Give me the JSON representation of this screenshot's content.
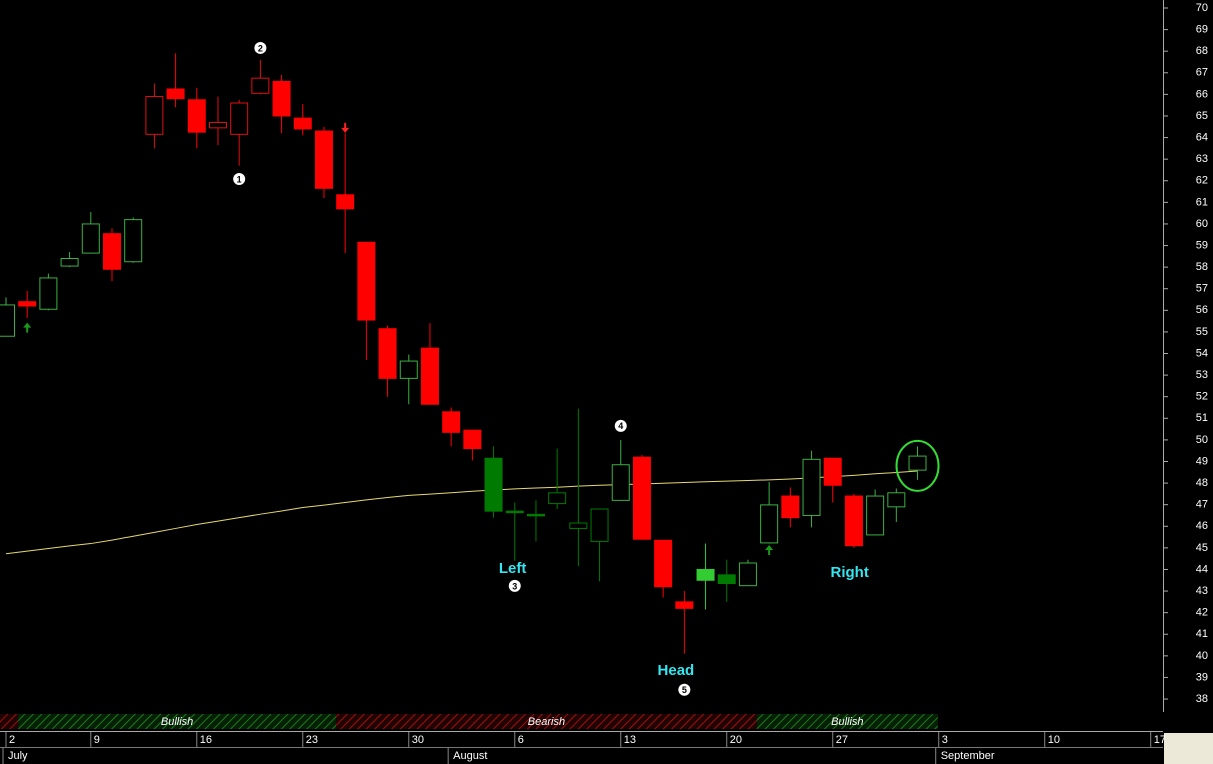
{
  "chart_data": {
    "type": "candlestick",
    "xlim": [
      -0.283,
      54.58
    ],
    "ylim": [
      37.4,
      70.37
    ],
    "yticks": [
      38,
      39,
      40,
      41,
      42,
      43,
      44,
      45,
      46,
      47,
      48,
      49,
      50,
      51,
      52,
      53,
      54,
      55,
      56,
      57,
      58,
      59,
      60,
      61,
      62,
      63,
      64,
      65,
      66,
      67,
      68,
      69,
      70
    ],
    "open": [
      54.8,
      56.4,
      56.05,
      58.05,
      58.65,
      59.55,
      58.25,
      64.15,
      66.25,
      65.75,
      64.45,
      64.15,
      66.05,
      66.6,
      64.9,
      64.3,
      61.35,
      59.15,
      55.15,
      52.85,
      54.25,
      51.3,
      50.45,
      49.15,
      46.7,
      46.55,
      47.05,
      45.9,
      45.3,
      47.2,
      49.2,
      45.35,
      42.5,
      44.0,
      43.75,
      43.25,
      45.23,
      47.4,
      46.5,
      49.15,
      47.4,
      45.6,
      46.9,
      48.6
    ],
    "high": [
      56.6,
      56.9,
      57.7,
      58.7,
      60.55,
      59.8,
      60.3,
      66.5,
      67.9,
      66.3,
      65.9,
      65.75,
      67.6,
      66.9,
      65.55,
      64.5,
      64.2,
      59.15,
      55.3,
      53.95,
      55.4,
      51.5,
      50.45,
      49.7,
      47.1,
      47.2,
      49.6,
      51.45,
      46.8,
      50.0,
      49.3,
      45.35,
      43.0,
      45.2,
      44.45,
      44.45,
      48.05,
      47.8,
      49.5,
      49.15,
      47.5,
      47.7,
      47.75,
      49.7
    ],
    "low": [
      54.8,
      55.65,
      56.0,
      58.0,
      58.65,
      57.35,
      58.2,
      63.5,
      65.4,
      63.5,
      63.65,
      62.7,
      66.0,
      64.2,
      64.1,
      61.2,
      58.65,
      53.7,
      52.0,
      51.65,
      51.65,
      49.7,
      49.05,
      46.4,
      44.4,
      45.3,
      46.8,
      44.15,
      43.45,
      47.2,
      45.4,
      42.7,
      40.1,
      42.15,
      42.5,
      43.25,
      45.2,
      45.95,
      45.95,
      47.1,
      45.0,
      45.6,
      46.2,
      48.15
    ],
    "close": [
      56.25,
      56.2,
      57.5,
      58.4,
      60.0,
      57.9,
      60.2,
      65.9,
      65.8,
      64.25,
      64.7,
      65.6,
      66.75,
      65.0,
      64.4,
      61.65,
      60.7,
      55.55,
      52.85,
      53.65,
      51.65,
      50.35,
      49.6,
      46.7,
      46.65,
      46.5,
      47.55,
      46.15,
      46.8,
      48.85,
      45.4,
      43.2,
      42.2,
      43.5,
      43.35,
      44.3,
      46.99,
      46.4,
      49.1,
      47.9,
      45.1,
      47.4,
      47.55,
      49.25
    ],
    "colors": [
      "#3cb043",
      "#ff0000",
      "#3cb043",
      "#3cb043",
      "#3cb043",
      "#ff0000",
      "#3cb043",
      "#e01010",
      "#ff0000",
      "#ff0000",
      "#e01010",
      "#e01010",
      "#e01010",
      "#ff0000",
      "#ff0000",
      "#ff0000",
      "#ff0000",
      "#ff0000",
      "#ff0000",
      "#3cb043",
      "#ff0000",
      "#ff0000",
      "#ff0000",
      "#007a00",
      "#007a00",
      "#007a00",
      "#007a00",
      "#007a00",
      "#007a00",
      "#3cb043",
      "#ff0000",
      "#ff0000",
      "#ff0000",
      "#33cc33",
      "#007a00",
      "#3cb043",
      "#3cb043",
      "#ff0000",
      "#3cb043",
      "#ff0000",
      "#ff0000",
      "#3cb043",
      "#3cb043",
      "#3cb043"
    ],
    "moving_average": {
      "color": "#e8d870",
      "values": [
        44.73,
        44.85,
        44.97,
        45.09,
        45.2,
        45.36,
        45.54,
        45.72,
        45.9,
        46.08,
        46.24,
        46.4,
        46.56,
        46.71,
        46.87,
        46.98,
        47.1,
        47.22,
        47.33,
        47.43,
        47.49,
        47.55,
        47.62,
        47.68,
        47.73,
        47.77,
        47.81,
        47.86,
        47.9,
        47.93,
        47.96,
        47.99,
        48.03,
        48.06,
        48.09,
        48.12,
        48.15,
        48.19,
        48.24,
        48.3,
        48.36,
        48.43,
        48.49,
        48.56
      ]
    },
    "xticks": [
      {
        "value": 0,
        "label": "2"
      },
      {
        "value": 4,
        "label": "9"
      },
      {
        "value": 9,
        "label": "16"
      },
      {
        "value": 14,
        "label": "23"
      },
      {
        "value": 19,
        "label": "30"
      },
      {
        "value": 24,
        "label": "6"
      },
      {
        "value": 29,
        "label": "13"
      },
      {
        "value": 34,
        "label": "20"
      },
      {
        "value": 39,
        "label": "27"
      },
      {
        "value": 44,
        "label": "3"
      },
      {
        "value": 49,
        "label": "10"
      },
      {
        "value": 54,
        "label": "17"
      }
    ],
    "months": [
      {
        "value": 0,
        "label": "July"
      },
      {
        "value": 21,
        "label": "August"
      },
      {
        "value": 44,
        "label": "September"
      }
    ],
    "sentiment": [
      {
        "label": "Bullish",
        "color": "#1f7a1f",
        "from": 0.57,
        "to": 15.57
      },
      {
        "label": "Bearish",
        "color": "#a01010",
        "from": 15.57,
        "to": 35.42
      },
      {
        "label": "Bullish",
        "color": "#1f7a1f",
        "from": 35.42,
        "to": 43.96
      }
    ],
    "markers": [
      {
        "label": "1",
        "index": 11,
        "price": 62.08
      },
      {
        "label": "2",
        "index": 12,
        "price": 68.15
      },
      {
        "label": "3",
        "index": 24,
        "price": 43.24
      },
      {
        "label": "4",
        "index": 29,
        "price": 50.65
      },
      {
        "label": "5",
        "index": 32,
        "price": 38.43
      }
    ],
    "annotations": [
      {
        "text": "Left",
        "index": 23.9,
        "price": 44.03
      },
      {
        "text": "Head",
        "index": 31.6,
        "price": 39.3
      },
      {
        "text": "Right",
        "index": 39.8,
        "price": 43.84
      }
    ],
    "arrows": [
      {
        "index": 1,
        "price": 55.2,
        "direction": "up",
        "color": "#1a9a1a"
      },
      {
        "index": 16,
        "price": 64.45,
        "direction": "down",
        "color": "#ff2020"
      },
      {
        "index": 36,
        "price": 44.9,
        "direction": "up",
        "color": "#1a9a1a"
      }
    ],
    "highlight": {
      "index": 43,
      "price": 48.8,
      "color": "#33dd33"
    }
  }
}
